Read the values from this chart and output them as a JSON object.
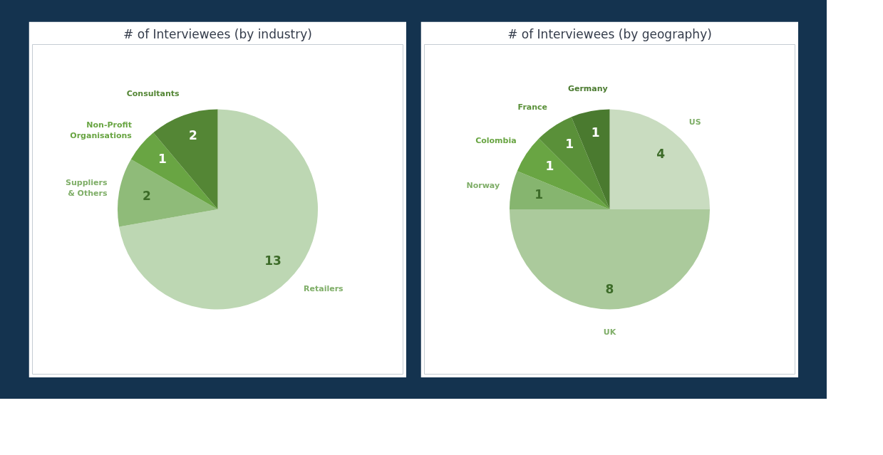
{
  "chart_data": [
    {
      "type": "pie",
      "title": "# of Interviewees (by industry)",
      "categories": [
        "Retailers",
        "Suppliers & Others",
        "Non-Profit Organisations",
        "Consultants"
      ],
      "values": [
        13,
        2,
        1,
        2
      ],
      "colors": [
        "#bdd7b3",
        "#8fbb79",
        "#69a543",
        "#548635"
      ],
      "data_labels": true
    },
    {
      "type": "pie",
      "title": "# of Interviewees (by geography)",
      "categories": [
        "US",
        "UK",
        "Norway",
        "Colombia",
        "France",
        "Germany"
      ],
      "values": [
        4,
        8,
        1,
        1,
        1,
        1
      ],
      "colors": [
        "#c9dcc0",
        "#abca9c",
        "#86b56f",
        "#69a543",
        "#5a9039",
        "#4a7a2f"
      ],
      "data_labels": true
    }
  ]
}
